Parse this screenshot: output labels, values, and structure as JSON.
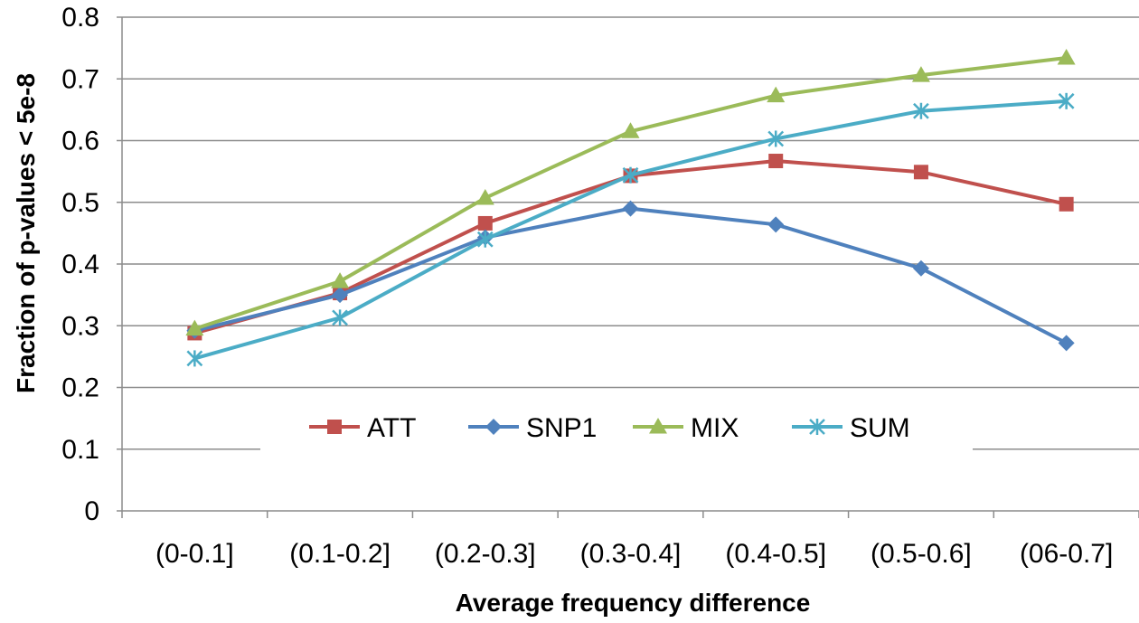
{
  "chart_data": {
    "type": "line",
    "xlabel": "Average frequency difference",
    "ylabel": "Fraction of p-values < 5e-8",
    "categories": [
      "(0-0.1]",
      "(0.1-0.2]",
      "(0.2-0.3]",
      "(0.3-0.4]",
      "(0.4-0.5]",
      "(0.5-0.6]",
      "(06-0.7]"
    ],
    "ylim": [
      0,
      0.8
    ],
    "yticks": [
      "0",
      "0.1",
      "0.2",
      "0.3",
      "0.4",
      "0.5",
      "0.6",
      "0.7",
      "0.8"
    ],
    "grid": "horizontal",
    "legend": "inside-center",
    "series": [
      {
        "name": "ATT",
        "color": "#C0504D",
        "marker": "square",
        "values": [
          0.288,
          0.353,
          0.466,
          0.543,
          0.567,
          0.549,
          0.497
        ]
      },
      {
        "name": "SNP1",
        "color": "#4F81BD",
        "marker": "diamond",
        "values": [
          0.292,
          0.35,
          0.443,
          0.49,
          0.464,
          0.393,
          0.272
        ]
      },
      {
        "name": "MIX",
        "color": "#9BBB59",
        "marker": "triangle",
        "values": [
          0.295,
          0.372,
          0.507,
          0.615,
          0.673,
          0.706,
          0.734
        ]
      },
      {
        "name": "SUM",
        "color": "#4BACC6",
        "marker": "star",
        "values": [
          0.247,
          0.313,
          0.44,
          0.544,
          0.603,
          0.648,
          0.664
        ]
      }
    ]
  }
}
